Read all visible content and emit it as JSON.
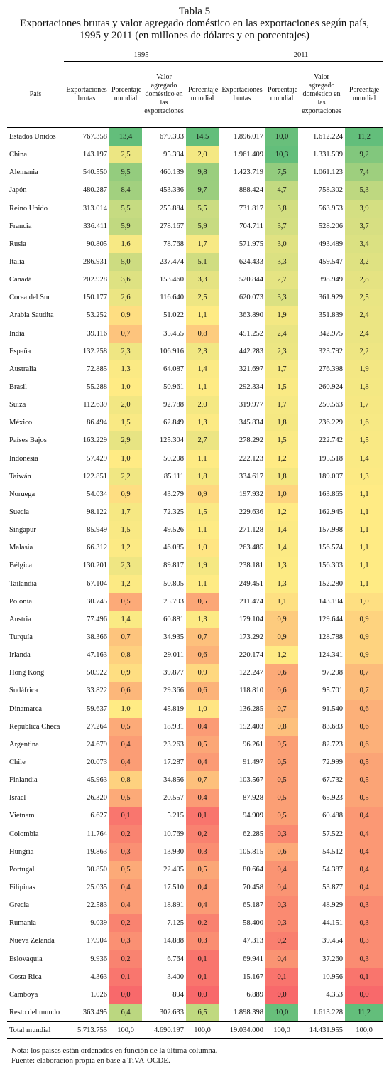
{
  "header": {
    "title": "Tabla 5",
    "subtitle_1": "Exportaciones brutas y valor agregado doméstico en las exportaciones según país,",
    "subtitle_2": "1995 y 2011 (en millones de dólares y en porcentajes)"
  },
  "table": {
    "groups": [
      "1995",
      "2011"
    ],
    "columns": [
      "País",
      "Exportaciones brutas",
      "Porcentaje mundial",
      "Valor agregado doméstico en las exportaciones",
      "Porcentaje mundial",
      "Exportaciones brutas",
      "Porcentaje mundial",
      "Valor agregado doméstico en las exportaciones",
      "Porcentaje mundial"
    ],
    "rows": [
      [
        "Estados Unidos",
        "767.358",
        "13,4",
        "679.393",
        "14,5",
        "1.896.017",
        "10,0",
        "1.612.224",
        "11,2"
      ],
      [
        "China",
        "143.197",
        "2,5",
        "95.394",
        "2,0",
        "1.961.409",
        "10,3",
        "1.331.599",
        "9,2"
      ],
      [
        "Alemania",
        "540.550",
        "9,5",
        "460.139",
        "9,8",
        "1.423.719",
        "7,5",
        "1.061.123",
        "7,4"
      ],
      [
        "Japón",
        "480.287",
        "8,4",
        "453.336",
        "9,7",
        "888.424",
        "4,7",
        "758.302",
        "5,3"
      ],
      [
        "Reino Unido",
        "313.014",
        "5,5",
        "255.884",
        "5,5",
        "731.817",
        "3,8",
        "563.953",
        "3,9"
      ],
      [
        "Francia",
        "336.411",
        "5,9",
        "278.167",
        "5,9",
        "704.711",
        "3,7",
        "528.206",
        "3,7"
      ],
      [
        "Rusia",
        "90.805",
        "1,6",
        "78.768",
        "1,7",
        "571.975",
        "3,0",
        "493.489",
        "3,4"
      ],
      [
        "Italia",
        "286.931",
        "5,0",
        "237.474",
        "5,1",
        "624.433",
        "3,3",
        "459.547",
        "3,2"
      ],
      [
        "Canadá",
        "202.928",
        "3,6",
        "153.460",
        "3,3",
        "520.844",
        "2,7",
        "398.949",
        "2,8"
      ],
      [
        "Corea del Sur",
        "150.177",
        "2,6",
        "116.640",
        "2,5",
        "620.073",
        "3,3",
        "361.929",
        "2,5"
      ],
      [
        "Arabia Saudita",
        "53.252",
        "0,9",
        "51.022",
        "1,1",
        "363.890",
        "1,9",
        "351.839",
        "2,4"
      ],
      [
        "India",
        "39.116",
        "0,7",
        "35.455",
        "0,8",
        "451.252",
        "2,4",
        "342.975",
        "2,4"
      ],
      [
        "España",
        "132.258",
        "2,3",
        "106.916",
        "2,3",
        "442.283",
        "2,3",
        "323.792",
        "2,2"
      ],
      [
        "Australia",
        "72.885",
        "1,3",
        "64.087",
        "1,4",
        "321.697",
        "1,7",
        "276.398",
        "1,9"
      ],
      [
        "Brasil",
        "55.288",
        "1,0",
        "50.961",
        "1,1",
        "292.334",
        "1,5",
        "260.924",
        "1,8"
      ],
      [
        "Suiza",
        "112.639",
        "2,0",
        "92.788",
        "2,0",
        "319.977",
        "1,7",
        "250.563",
        "1,7"
      ],
      [
        "México",
        "86.494",
        "1,5",
        "62.849",
        "1,3",
        "345.834",
        "1,8",
        "236.229",
        "1,6"
      ],
      [
        "Países Bajos",
        "163.229",
        "2,9",
        "125.304",
        "2,7",
        "278.292",
        "1,5",
        "222.742",
        "1,5"
      ],
      [
        "Indonesia",
        "57.429",
        "1,0",
        "50.208",
        "1,1",
        "222.123",
        "1,2",
        "195.518",
        "1,4"
      ],
      [
        "Taiwán",
        "122.851",
        "2,2",
        "85.111",
        "1,8",
        "334.617",
        "1,8",
        "189.007",
        "1,3"
      ],
      [
        "Noruega",
        "54.034",
        "0,9",
        "43.279",
        "0,9",
        "197.932",
        "1,0",
        "163.865",
        "1,1"
      ],
      [
        "Suecia",
        "98.122",
        "1,7",
        "72.325",
        "1,5",
        "229.636",
        "1,2",
        "162.945",
        "1,1"
      ],
      [
        "Singapur",
        "85.949",
        "1,5",
        "49.526",
        "1,1",
        "271.128",
        "1,4",
        "157.998",
        "1,1"
      ],
      [
        "Malasia",
        "66.312",
        "1,2",
        "46.085",
        "1,0",
        "263.485",
        "1,4",
        "156.574",
        "1,1"
      ],
      [
        "Bélgica",
        "130.201",
        "2,3",
        "89.817",
        "1,9",
        "238.181",
        "1,3",
        "156.303",
        "1,1"
      ],
      [
        "Tailandia",
        "67.104",
        "1,2",
        "50.805",
        "1,1",
        "249.451",
        "1,3",
        "152.280",
        "1,1"
      ],
      [
        "Polonia",
        "30.745",
        "0,5",
        "25.793",
        "0,5",
        "211.474",
        "1,1",
        "143.194",
        "1,0"
      ],
      [
        "Austria",
        "77.496",
        "1,4",
        "60.881",
        "1,3",
        "179.104",
        "0,9",
        "129.644",
        "0,9"
      ],
      [
        "Turquía",
        "38.366",
        "0,7",
        "34.935",
        "0,7",
        "173.292",
        "0,9",
        "128.788",
        "0,9"
      ],
      [
        "Irlanda",
        "47.163",
        "0,8",
        "29.011",
        "0,6",
        "220.174",
        "1,2",
        "124.341",
        "0,9"
      ],
      [
        "Hong Kong",
        "50.922",
        "0,9",
        "39.877",
        "0,9",
        "122.247",
        "0,6",
        "97.298",
        "0,7"
      ],
      [
        "Sudáfrica",
        "33.822",
        "0,6",
        "29.366",
        "0,6",
        "118.810",
        "0,6",
        "95.701",
        "0,7"
      ],
      [
        "Dinamarca",
        "59.637",
        "1,0",
        "45.819",
        "1,0",
        "136.285",
        "0,7",
        "91.540",
        "0,6"
      ],
      [
        "República Checa",
        "27.264",
        "0,5",
        "18.931",
        "0,4",
        "152.403",
        "0,8",
        "83.683",
        "0,6"
      ],
      [
        "Argentina",
        "24.679",
        "0,4",
        "23.263",
        "0,5",
        "96.261",
        "0,5",
        "82.723",
        "0,6"
      ],
      [
        "Chile",
        "20.073",
        "0,4",
        "17.287",
        "0,4",
        "91.497",
        "0,5",
        "72.999",
        "0,5"
      ],
      [
        "Finlandia",
        "45.963",
        "0,8",
        "34.856",
        "0,7",
        "103.567",
        "0,5",
        "67.732",
        "0,5"
      ],
      [
        "Israel",
        "26.320",
        "0,5",
        "20.557",
        "0,4",
        "87.928",
        "0,5",
        "65.923",
        "0,5"
      ],
      [
        "Vietnam",
        "6.627",
        "0,1",
        "5.215",
        "0,1",
        "94.909",
        "0,5",
        "60.488",
        "0,4"
      ],
      [
        "Colombia",
        "11.764",
        "0,2",
        "10.769",
        "0,2",
        "62.285",
        "0,3",
        "57.522",
        "0,4"
      ],
      [
        "Hungría",
        "19.863",
        "0,3",
        "13.930",
        "0,3",
        "105.815",
        "0,6",
        "54.512",
        "0,4"
      ],
      [
        "Portugal",
        "30.850",
        "0,5",
        "22.405",
        "0,5",
        "80.664",
        "0,4",
        "54.387",
        "0,4"
      ],
      [
        "Filipinas",
        "25.035",
        "0,4",
        "17.510",
        "0,4",
        "70.458",
        "0,4",
        "53.877",
        "0,4"
      ],
      [
        "Grecia",
        "22.583",
        "0,4",
        "18.891",
        "0,4",
        "65.187",
        "0,3",
        "48.929",
        "0,3"
      ],
      [
        "Rumania",
        "9.039",
        "0,2",
        "7.125",
        "0,2",
        "58.400",
        "0,3",
        "44.151",
        "0,3"
      ],
      [
        "Nueva Zelanda",
        "17.904",
        "0,3",
        "14.888",
        "0,3",
        "47.313",
        "0,2",
        "39.454",
        "0,3"
      ],
      [
        "Eslovaquia",
        "9.936",
        "0,2",
        "6.764",
        "0,1",
        "69.941",
        "0,4",
        "37.260",
        "0,3"
      ],
      [
        "Costa Rica",
        "4.363",
        "0,1",
        "3.400",
        "0,1",
        "15.167",
        "0,1",
        "10.956",
        "0,1"
      ],
      [
        "Camboya",
        "1.026",
        "0,0",
        "894",
        "0,0",
        "6.889",
        "0,0",
        "4.353",
        "0,0"
      ],
      [
        "Resto del mundo",
        "363.495",
        "6,4",
        "302.633",
        "6,5",
        "1.898.398",
        "10,0",
        "1.613.228",
        "11,2"
      ]
    ],
    "total": [
      "Total mundial",
      "5.713.755",
      "100,0",
      "4.690.197",
      "100,0",
      "19.034.000",
      "100,0",
      "14.431.955",
      "100,0"
    ]
  },
  "notes": {
    "note": "Nota: los países están ordenados en función de la última columna.",
    "source": "Fuente: elaboración propia en base a TiVA-OCDE."
  }
}
